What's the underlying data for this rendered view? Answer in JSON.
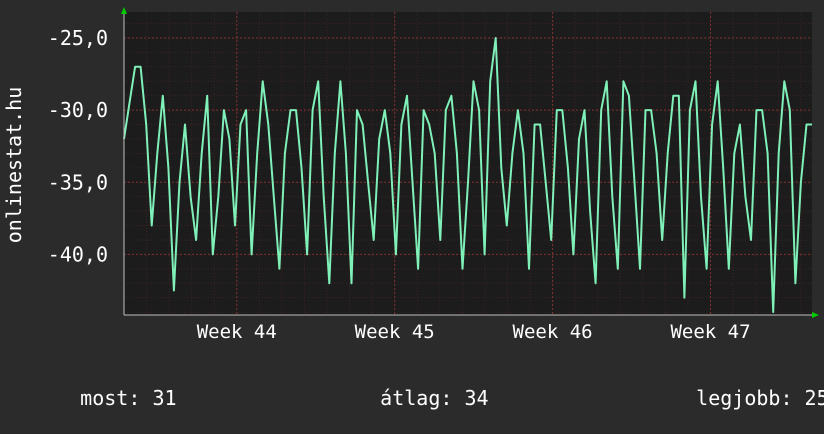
{
  "chart_data": {
    "type": "line",
    "title": "",
    "ylabel": "onlinestat.hu",
    "xlabel": "",
    "ylim": [
      -44.2,
      -23.2
    ],
    "yticks": [
      -25,
      -30,
      -35,
      -40
    ],
    "ytick_labels": [
      "-25,0",
      "-30,0",
      "-35,0",
      "-40,0"
    ],
    "xticks": [
      {
        "label": "Week 44",
        "x": 5
      },
      {
        "label": "Week 45",
        "x": 12
      },
      {
        "label": "Week 46",
        "x": 19
      },
      {
        "label": "Week 47",
        "x": 26
      }
    ],
    "xlim": [
      0,
      30.5
    ],
    "grid": true,
    "colors": {
      "background": "#2b2b2b",
      "plot_background": "#1c1c1c",
      "grid": "#5a2a2a",
      "line": "#7ff0b8",
      "axis": "#bfbfbf",
      "arrow": "#00cc00"
    },
    "series": [
      {
        "values": [
          -32,
          -29.5,
          -27,
          -27,
          -31,
          -38,
          -33,
          -29,
          -34,
          -42.5,
          -35,
          -31,
          -36,
          -39,
          -33,
          -29,
          -40,
          -36,
          -30,
          -32,
          -38,
          -31,
          -30,
          -40,
          -33,
          -28,
          -31,
          -36,
          -41,
          -33,
          -30,
          -30,
          -34,
          -40,
          -30,
          -28,
          -36,
          -42,
          -33,
          -28,
          -33,
          -42,
          -30,
          -31,
          -35,
          -39,
          -32,
          -30,
          -33,
          -40,
          -31,
          -29,
          -35,
          -41,
          -30,
          -31,
          -33,
          -39,
          -30,
          -29,
          -33,
          -41,
          -35,
          -28,
          -30,
          -40,
          -28,
          -25,
          -34,
          -38,
          -33,
          -30,
          -33,
          -41,
          -31,
          -31,
          -35,
          -39,
          -30,
          -30,
          -34,
          -40,
          -32,
          -30,
          -37,
          -42,
          -30,
          -28,
          -36,
          -41,
          -28,
          -29,
          -35,
          -41,
          -30,
          -30,
          -33,
          -39,
          -33,
          -29,
          -29,
          -43,
          -30,
          -28,
          -36,
          -41,
          -31,
          -28,
          -34,
          -41,
          -33,
          -31,
          -36,
          -39,
          -30,
          -30,
          -33,
          -44,
          -33,
          -28,
          -30,
          -42,
          -35,
          -31,
          -31
        ]
      }
    ]
  },
  "stats": {
    "current": {
      "label": "most:",
      "value": "31"
    },
    "average": {
      "label": "átlag:",
      "value": "34"
    },
    "best": {
      "label": "legjobb:",
      "value": "25"
    }
  }
}
